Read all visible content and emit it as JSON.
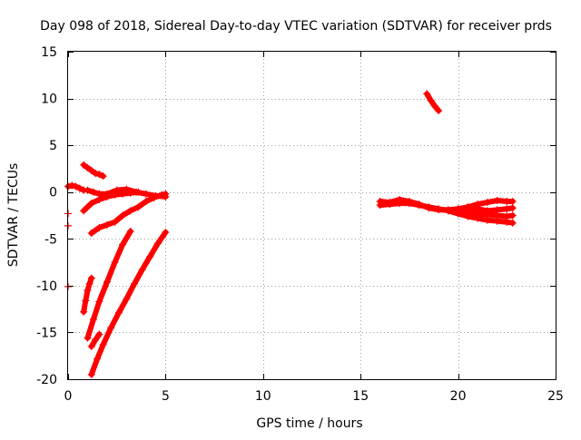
{
  "chart_data": {
    "type": "scatter",
    "title": "Day 098 of 2018, Sidereal Day-to-day VTEC variation (SDTVAR) for receiver prds",
    "xlabel": "GPS time / hours",
    "ylabel": "SDTVAR / TECUs",
    "xlim": [
      0,
      25
    ],
    "ylim": [
      -20,
      15
    ],
    "x_ticks": [
      0,
      5,
      10,
      15,
      20,
      25
    ],
    "y_ticks": [
      -20,
      -15,
      -10,
      -5,
      0,
      5,
      10,
      15
    ],
    "x_tick_labels": [
      "0",
      "5",
      "10",
      "15",
      "20",
      "25"
    ],
    "y_tick_labels": [
      "-20",
      "-15",
      "-10",
      "-5",
      "0",
      "5",
      "10",
      "15"
    ],
    "grid": true,
    "legend": "none",
    "marker": "plus",
    "color": "#ff0000",
    "series": [
      {
        "x": [
          0.0,
          0.2,
          0.4,
          0.6,
          0.8
        ],
        "y": [
          0.6,
          0.7,
          0.6,
          0.4,
          0.2
        ]
      },
      {
        "x": [
          0.8,
          1.0,
          1.2,
          1.4,
          1.6,
          1.8
        ],
        "y": [
          2.9,
          2.6,
          2.3,
          2.0,
          1.9,
          1.7
        ]
      },
      {
        "x": [
          0.8,
          1.2,
          1.6,
          2.0,
          2.4,
          2.8,
          3.2,
          3.6
        ],
        "y": [
          -2.0,
          -1.2,
          -0.8,
          -0.5,
          -0.3,
          -0.2,
          -0.1,
          0.0
        ]
      },
      {
        "x": [
          1.0,
          1.3,
          1.6,
          2.0,
          2.5,
          3.0,
          3.5,
          4.0,
          4.5,
          5.0
        ],
        "y": [
          0.2,
          0.0,
          -0.2,
          -0.2,
          0.2,
          0.3,
          0.0,
          -0.2,
          -0.4,
          -0.5
        ]
      },
      {
        "x": [
          1.2,
          1.6,
          2.0,
          2.4,
          2.8,
          3.2,
          3.6,
          4.0,
          4.4,
          4.8,
          5.0
        ],
        "y": [
          -4.4,
          -3.8,
          -3.5,
          -3.2,
          -2.5,
          -2.0,
          -1.6,
          -1.0,
          -0.6,
          -0.3,
          -0.2
        ]
      },
      {
        "x": [
          0.8,
          0.9,
          1.0,
          1.1,
          1.2
        ],
        "y": [
          -12.8,
          -11.6,
          -10.5,
          -9.8,
          -9.2
        ]
      },
      {
        "x": [
          1.0,
          1.3,
          1.6,
          2.0,
          2.4,
          2.8,
          3.2
        ],
        "y": [
          -15.6,
          -13.6,
          -11.7,
          -9.6,
          -7.5,
          -5.6,
          -4.2
        ]
      },
      {
        "x": [
          1.2,
          1.5,
          1.8,
          2.2,
          2.6,
          3.0,
          3.4,
          3.8,
          4.2,
          4.6,
          5.0
        ],
        "y": [
          -19.5,
          -17.8,
          -16.3,
          -14.5,
          -12.9,
          -11.4,
          -9.8,
          -8.3,
          -6.9,
          -5.5,
          -4.3
        ]
      },
      {
        "x": [
          1.2,
          1.4,
          1.6
        ],
        "y": [
          -16.5,
          -15.8,
          -15.2
        ]
      },
      {
        "x": [
          0.0
        ],
        "y": [
          -2.3
        ]
      },
      {
        "x": [
          0.0
        ],
        "y": [
          -3.6
        ]
      },
      {
        "x": [
          0.0
        ],
        "y": [
          -10.1
        ]
      },
      {
        "x": [
          18.4,
          18.6,
          18.8,
          19.0
        ],
        "y": [
          10.5,
          9.8,
          9.2,
          8.7
        ]
      },
      {
        "x": [
          16.0,
          16.5,
          17.0,
          17.5,
          18.0,
          18.5,
          19.0,
          19.5,
          20.0,
          20.5,
          21.0,
          21.5,
          22.0,
          22.5,
          22.8
        ],
        "y": [
          -1.4,
          -1.3,
          -1.2,
          -1.2,
          -1.4,
          -1.6,
          -1.8,
          -2.0,
          -2.1,
          -2.2,
          -2.3,
          -2.4,
          -2.5,
          -2.6,
          -2.5
        ]
      },
      {
        "x": [
          16.0,
          16.5,
          17.0,
          17.5,
          18.0,
          18.5,
          19.0,
          19.5,
          20.0,
          20.5,
          21.0,
          21.5,
          22.0,
          22.5,
          22.8
        ],
        "y": [
          -1.0,
          -1.1,
          -0.8,
          -1.0,
          -1.3,
          -1.7,
          -1.9,
          -1.9,
          -1.8,
          -1.6,
          -1.3,
          -1.1,
          -0.9,
          -1.0,
          -1.0
        ]
      },
      {
        "x": [
          19.5,
          20.0,
          20.5,
          21.0,
          21.5,
          22.0,
          22.5,
          22.8
        ],
        "y": [
          -2.0,
          -2.3,
          -2.6,
          -2.8,
          -3.0,
          -3.1,
          -3.2,
          -3.3
        ]
      },
      {
        "x": [
          20.5,
          21.0,
          21.5,
          22.0,
          22.5,
          22.8
        ],
        "y": [
          -1.6,
          -1.8,
          -2.0,
          -1.9,
          -1.8,
          -1.7
        ]
      }
    ]
  }
}
